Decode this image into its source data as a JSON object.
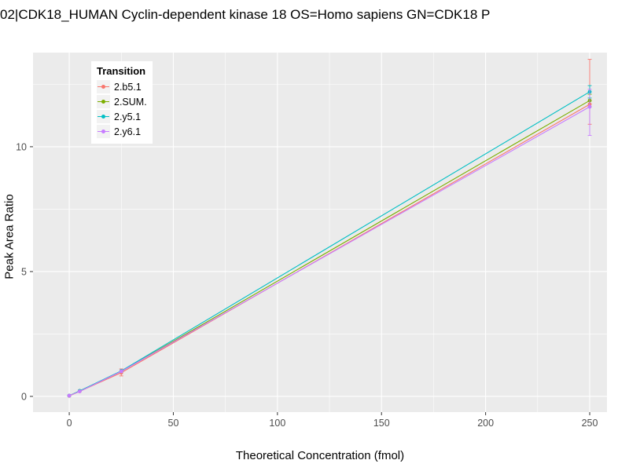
{
  "chart_data": {
    "type": "scatter",
    "title": "02|CDK18_HUMAN Cyclin-dependent kinase 18 OS=Homo sapiens GN=CDK18 P",
    "xlabel": "Theoretical Concentration (fmol)",
    "ylabel": "Peak Area Ratio",
    "x_ticks": [
      0,
      50,
      100,
      150,
      200,
      250
    ],
    "y_ticks": [
      0,
      5,
      10
    ],
    "x_minor_ticks": [
      25,
      75,
      125,
      175,
      225
    ],
    "y_minor_ticks": [
      2.5,
      7.5,
      12.5
    ],
    "xlim": [
      -17.4,
      258.3
    ],
    "ylim": [
      -0.63,
      13.77
    ],
    "panel_background": "#EBEBEB",
    "grid_color": "#FFFFFF",
    "tick_label_color": "#4D4D4D",
    "legend_title": "Transition",
    "legend_position": "inside-top-left",
    "series": [
      {
        "name": "2.b5.1",
        "color": "#F8766D",
        "points": [
          [
            0,
            0.02,
            null,
            null
          ],
          [
            5,
            0.2,
            null,
            null
          ],
          [
            25,
            0.95,
            0.82,
            1.1
          ],
          [
            250,
            11.7,
            10.9,
            13.5
          ]
        ]
      },
      {
        "name": "2.SUM.",
        "color": "#7CAE00",
        "points": [
          [
            0,
            0.03,
            null,
            null
          ],
          [
            5,
            0.22,
            null,
            null
          ],
          [
            25,
            1.0,
            null,
            null
          ],
          [
            250,
            11.85,
            11.6,
            12.1
          ]
        ]
      },
      {
        "name": "2.y5.1",
        "color": "#00BFC4",
        "points": [
          [
            0,
            0.03,
            null,
            null
          ],
          [
            5,
            0.22,
            null,
            null
          ],
          [
            25,
            1.02,
            null,
            null
          ],
          [
            250,
            12.2,
            11.95,
            12.45
          ]
        ]
      },
      {
        "name": "2.y6.1",
        "color": "#C77CFF",
        "points": [
          [
            0,
            0.03,
            null,
            null
          ],
          [
            5,
            0.2,
            null,
            null
          ],
          [
            25,
            1.0,
            null,
            null
          ],
          [
            250,
            11.6,
            10.45,
            12.3
          ]
        ]
      }
    ]
  }
}
